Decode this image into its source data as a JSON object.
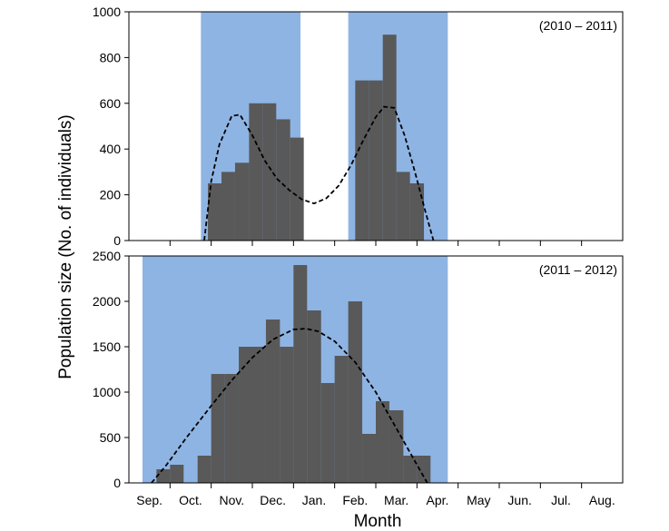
{
  "ylabel": "Population size (No. of individuals)",
  "xlabel": "Month",
  "months": [
    "Sep.",
    "Oct.",
    "Nov.",
    "Dec.",
    "Jan.",
    "Feb.",
    "Mar.",
    "Apr.",
    "May",
    "Jun.",
    "Jul.",
    "Aug."
  ],
  "colors": {
    "bar": "#595959",
    "shade": "#8eb4e3",
    "curve": "#000000"
  },
  "chart_data": [
    {
      "type": "bar",
      "panel_label": "(2010 – 2011)",
      "ylim": [
        0,
        1000
      ],
      "yticks": [
        0,
        200,
        400,
        600,
        800,
        1000
      ],
      "shaded_periods": [
        [
          1.75,
          4.17
        ],
        [
          5.33,
          7.75
        ]
      ],
      "bins": [
        {
          "x0": 1.92,
          "x1": 2.25,
          "y": 250
        },
        {
          "x0": 2.25,
          "x1": 2.58,
          "y": 300
        },
        {
          "x0": 2.58,
          "x1": 2.92,
          "y": 340
        },
        {
          "x0": 2.92,
          "x1": 3.25,
          "y": 600
        },
        {
          "x0": 3.25,
          "x1": 3.58,
          "y": 600
        },
        {
          "x0": 3.58,
          "x1": 3.92,
          "y": 530
        },
        {
          "x0": 3.92,
          "x1": 4.25,
          "y": 450
        },
        {
          "x0": 5.5,
          "x1": 5.83,
          "y": 700
        },
        {
          "x0": 5.83,
          "x1": 6.17,
          "y": 700
        },
        {
          "x0": 6.17,
          "x1": 6.5,
          "y": 900
        },
        {
          "x0": 6.5,
          "x1": 6.83,
          "y": 300
        },
        {
          "x0": 6.83,
          "x1": 7.17,
          "y": 250
        }
      ],
      "fit_curve": [
        [
          1.83,
          0
        ],
        [
          2.0,
          260
        ],
        [
          2.2,
          420
        ],
        [
          2.5,
          545
        ],
        [
          2.7,
          550
        ],
        [
          3.0,
          460
        ],
        [
          3.3,
          350
        ],
        [
          3.6,
          270
        ],
        [
          3.9,
          220
        ],
        [
          4.2,
          180
        ],
        [
          4.5,
          162
        ],
        [
          4.8,
          185
        ],
        [
          5.1,
          240
        ],
        [
          5.4,
          330
        ],
        [
          5.7,
          440
        ],
        [
          6.0,
          540
        ],
        [
          6.2,
          585
        ],
        [
          6.45,
          580
        ],
        [
          6.7,
          460
        ],
        [
          6.95,
          300
        ],
        [
          7.2,
          130
        ],
        [
          7.4,
          0
        ]
      ]
    },
    {
      "type": "bar",
      "panel_label": "(2011 – 2012)",
      "ylim": [
        0,
        2500
      ],
      "yticks": [
        0,
        500,
        1000,
        1500,
        2000,
        2500
      ],
      "shaded_periods": [
        [
          0.33,
          7.75
        ]
      ],
      "bins": [
        {
          "x0": 0.67,
          "x1": 1.0,
          "y": 150
        },
        {
          "x0": 1.0,
          "x1": 1.33,
          "y": 200
        },
        {
          "x0": 1.67,
          "x1": 2.0,
          "y": 300
        },
        {
          "x0": 2.0,
          "x1": 2.33,
          "y": 1200
        },
        {
          "x0": 2.33,
          "x1": 2.67,
          "y": 1200
        },
        {
          "x0": 2.67,
          "x1": 3.0,
          "y": 1500
        },
        {
          "x0": 3.0,
          "x1": 3.33,
          "y": 1500
        },
        {
          "x0": 3.33,
          "x1": 3.67,
          "y": 1800
        },
        {
          "x0": 3.67,
          "x1": 4.0,
          "y": 1500
        },
        {
          "x0": 4.0,
          "x1": 4.33,
          "y": 2400
        },
        {
          "x0": 4.33,
          "x1": 4.67,
          "y": 1900
        },
        {
          "x0": 4.67,
          "x1": 5.0,
          "y": 1100
        },
        {
          "x0": 5.0,
          "x1": 5.33,
          "y": 1400
        },
        {
          "x0": 5.33,
          "x1": 5.67,
          "y": 2000
        },
        {
          "x0": 5.67,
          "x1": 6.0,
          "y": 540
        },
        {
          "x0": 6.0,
          "x1": 6.33,
          "y": 900
        },
        {
          "x0": 6.33,
          "x1": 6.67,
          "y": 800
        },
        {
          "x0": 6.67,
          "x1": 7.0,
          "y": 300
        },
        {
          "x0": 7.0,
          "x1": 7.33,
          "y": 300
        }
      ],
      "fit_curve": [
        [
          0.55,
          0
        ],
        [
          0.9,
          190
        ],
        [
          1.4,
          500
        ],
        [
          2.0,
          850
        ],
        [
          2.5,
          1130
        ],
        [
          3.0,
          1380
        ],
        [
          3.5,
          1580
        ],
        [
          4.0,
          1690
        ],
        [
          4.3,
          1700
        ],
        [
          4.6,
          1670
        ],
        [
          5.0,
          1560
        ],
        [
          5.5,
          1330
        ],
        [
          6.0,
          1000
        ],
        [
          6.5,
          600
        ],
        [
          7.0,
          200
        ],
        [
          7.25,
          0
        ]
      ]
    }
  ]
}
